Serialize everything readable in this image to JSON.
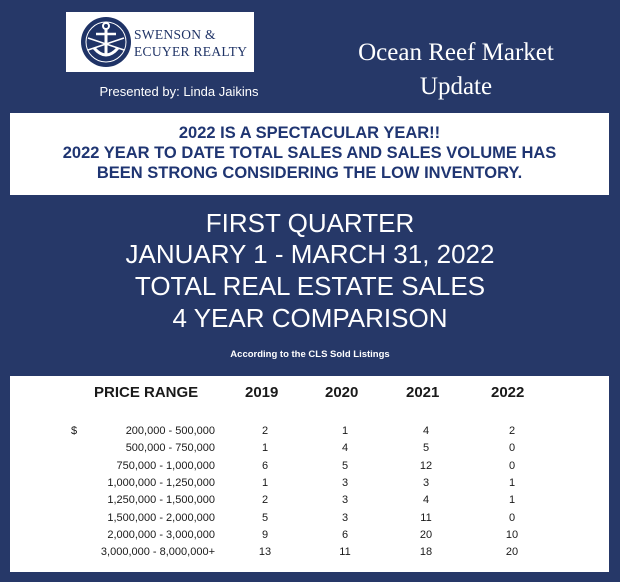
{
  "logo": {
    "text": "SWENSON &\nECUYER REALTY"
  },
  "presenter": "Presented by: Linda Jaikins",
  "title": "Ocean Reef Market Update",
  "headline": [
    "2022 IS A SPECTACULAR YEAR!!",
    "2022 YEAR TO DATE TOTAL SALES AND SALES VOLUME HAS",
    "BEEN STRONG CONSIDERING THE LOW INVENTORY."
  ],
  "subtitle": [
    "FIRST QUARTER",
    "JANUARY 1 - MARCH 31, 2022",
    "TOTAL REAL ESTATE SALES",
    "4 YEAR COMPARISON"
  ],
  "source_note": "According to the CLS Sold Listings",
  "table": {
    "currency_symbol": "$",
    "headers": [
      "PRICE RANGE",
      "2019",
      "2020",
      "2021",
      "2022"
    ],
    "rows": [
      {
        "range": "200,000 - 500,000",
        "y2019": "2",
        "y2020": "1",
        "y2021": "4",
        "y2022": "2"
      },
      {
        "range": "500,000 - 750,000",
        "y2019": "1",
        "y2020": "4",
        "y2021": "5",
        "y2022": "0"
      },
      {
        "range": "750,000 - 1,000,000",
        "y2019": "6",
        "y2020": "5",
        "y2021": "12",
        "y2022": "0"
      },
      {
        "range": "1,000,000 - 1,250,000",
        "y2019": "1",
        "y2020": "3",
        "y2021": "3",
        "y2022": "1"
      },
      {
        "range": "1,250,000 - 1,500,000",
        "y2019": "2",
        "y2020": "3",
        "y2021": "4",
        "y2022": "1"
      },
      {
        "range": "1,500,000 - 2,000,000",
        "y2019": "5",
        "y2020": "3",
        "y2021": "11",
        "y2022": "0"
      },
      {
        "range": "2,000,000 - 3,000,000",
        "y2019": "9",
        "y2020": "6",
        "y2021": "20",
        "y2022": "10"
      },
      {
        "range": "3,000,000 - 8,000,000+",
        "y2019": "13",
        "y2020": "11",
        "y2021": "18",
        "y2022": "20"
      }
    ]
  },
  "colors": {
    "background": "#263868",
    "headline_text": "#1f3572",
    "panel": "#ffffff"
  }
}
